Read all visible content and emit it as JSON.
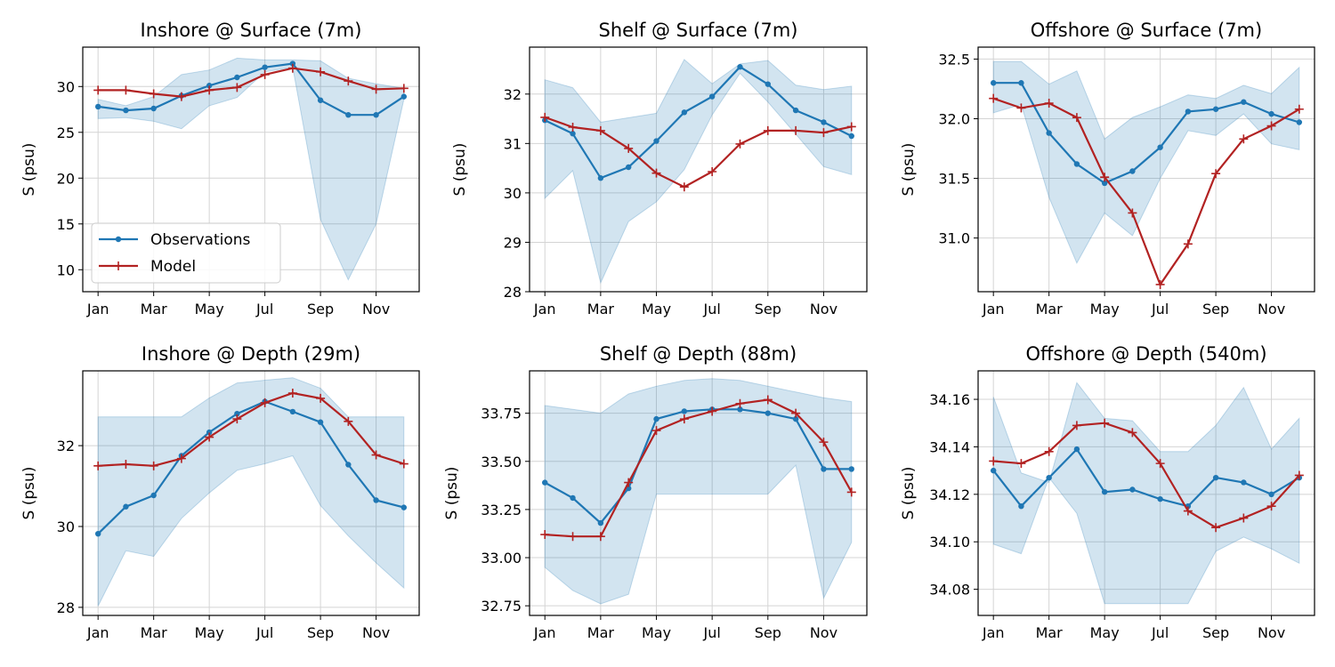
{
  "colors": {
    "obs": "#1f77b4",
    "model": "#b22222",
    "band": "#1f77b4",
    "grid": "#d4d4d4"
  },
  "legend": {
    "placement": "lower-left",
    "panel": 0,
    "obs_label": "Observations",
    "model_label": "Model"
  },
  "chart_data": [
    {
      "type": "line",
      "title": "Inshore @ Surface (7m)",
      "ylabel": "S (psu)",
      "months": [
        1,
        2,
        3,
        4,
        5,
        6,
        7,
        8,
        9,
        10,
        11,
        12
      ],
      "xticks": [
        {
          "m": 1,
          "label": "Jan"
        },
        {
          "m": 3,
          "label": "Mar"
        },
        {
          "m": 5,
          "label": "May"
        },
        {
          "m": 7,
          "label": "Jul"
        },
        {
          "m": 9,
          "label": "Sep"
        },
        {
          "m": 11,
          "label": "Nov"
        }
      ],
      "ylim": [
        7.6,
        34.3
      ],
      "yticks": [
        {
          "v": 10,
          "label": "10"
        },
        {
          "v": 15,
          "label": "15"
        },
        {
          "v": 20,
          "label": "20"
        },
        {
          "v": 25,
          "label": "25"
        },
        {
          "v": 30,
          "label": "30"
        }
      ],
      "series": [
        {
          "name": "Observations",
          "values": [
            27.8,
            27.4,
            27.6,
            29.0,
            30.1,
            31.0,
            32.1,
            32.5,
            28.5,
            26.9,
            26.9,
            28.9
          ]
        },
        {
          "name": "Model",
          "values": [
            29.6,
            29.6,
            29.2,
            28.9,
            29.6,
            29.9,
            31.3,
            32.0,
            31.6,
            30.6,
            29.7,
            29.8
          ]
        }
      ],
      "band_upper": [
        28.6,
        27.9,
        28.9,
        31.3,
        31.8,
        33.1,
        32.9,
        32.9,
        32.8,
        30.9,
        30.3,
        29.8
      ],
      "band_lower": [
        26.5,
        26.6,
        26.2,
        25.4,
        27.9,
        28.8,
        31.6,
        32.1,
        15.5,
        8.9,
        15.0,
        28.6
      ]
    },
    {
      "type": "line",
      "title": "Shelf @ Surface (7m)",
      "ylabel": "S (psu)",
      "months": [
        1,
        2,
        3,
        4,
        5,
        6,
        7,
        8,
        9,
        10,
        11,
        12
      ],
      "xticks": [
        {
          "m": 1,
          "label": "Jan"
        },
        {
          "m": 3,
          "label": "Mar"
        },
        {
          "m": 5,
          "label": "May"
        },
        {
          "m": 7,
          "label": "Jul"
        },
        {
          "m": 9,
          "label": "Sep"
        },
        {
          "m": 11,
          "label": "Nov"
        }
      ],
      "ylim": [
        28.0,
        32.95
      ],
      "yticks": [
        {
          "v": 28,
          "label": "28"
        },
        {
          "v": 29,
          "label": "29"
        },
        {
          "v": 30,
          "label": "30"
        },
        {
          "v": 31,
          "label": "31"
        },
        {
          "v": 32,
          "label": "32"
        }
      ],
      "series": [
        {
          "name": "Observations",
          "values": [
            31.47,
            31.2,
            30.3,
            30.52,
            31.05,
            31.63,
            31.95,
            32.55,
            32.2,
            31.67,
            31.43,
            31.15
          ]
        },
        {
          "name": "Model",
          "values": [
            31.53,
            31.33,
            31.26,
            30.9,
            30.4,
            30.12,
            30.43,
            30.99,
            31.26,
            31.26,
            31.22,
            31.34
          ]
        }
      ],
      "band_upper": [
        32.29,
        32.13,
        31.43,
        31.52,
        31.61,
        32.7,
        32.21,
        32.61,
        32.68,
        32.18,
        32.09,
        32.16
      ],
      "band_lower": [
        29.89,
        30.45,
        28.18,
        29.42,
        29.82,
        30.47,
        31.58,
        32.42,
        31.84,
        31.19,
        30.53,
        30.37
      ]
    },
    {
      "type": "line",
      "title": "Offshore @ Surface (7m)",
      "ylabel": "S (psu)",
      "months": [
        1,
        2,
        3,
        4,
        5,
        6,
        7,
        8,
        9,
        10,
        11,
        12
      ],
      "xticks": [
        {
          "m": 1,
          "label": "Jan"
        },
        {
          "m": 3,
          "label": "Mar"
        },
        {
          "m": 5,
          "label": "May"
        },
        {
          "m": 7,
          "label": "Jul"
        },
        {
          "m": 9,
          "label": "Sep"
        },
        {
          "m": 11,
          "label": "Nov"
        }
      ],
      "ylim": [
        30.55,
        32.6
      ],
      "yticks": [
        {
          "v": 31.0,
          "label": "31.0"
        },
        {
          "v": 31.5,
          "label": "31.5"
        },
        {
          "v": 32.0,
          "label": "32.0"
        },
        {
          "v": 32.5,
          "label": "32.5"
        }
      ],
      "series": [
        {
          "name": "Observations",
          "values": [
            32.3,
            32.3,
            31.88,
            31.62,
            31.46,
            31.56,
            31.76,
            32.06,
            32.08,
            32.14,
            32.04,
            31.97
          ]
        },
        {
          "name": "Model",
          "values": [
            32.17,
            32.09,
            32.13,
            32.01,
            31.51,
            31.21,
            30.61,
            30.95,
            31.54,
            31.83,
            31.94,
            32.08
          ]
        }
      ],
      "band_upper": [
        32.48,
        32.48,
        32.29,
        32.4,
        31.83,
        32.01,
        32.1,
        32.2,
        32.17,
        32.28,
        32.21,
        32.43
      ],
      "band_lower": [
        32.05,
        32.12,
        31.34,
        30.79,
        31.21,
        31.02,
        31.5,
        31.9,
        31.86,
        32.04,
        31.79,
        31.74
      ]
    },
    {
      "type": "line",
      "title": "Inshore @ Depth (29m)",
      "ylabel": "S (psu)",
      "months": [
        1,
        2,
        3,
        4,
        5,
        6,
        7,
        8,
        9,
        10,
        11,
        12
      ],
      "xticks": [
        {
          "m": 1,
          "label": "Jan"
        },
        {
          "m": 3,
          "label": "Mar"
        },
        {
          "m": 5,
          "label": "May"
        },
        {
          "m": 7,
          "label": "Jul"
        },
        {
          "m": 9,
          "label": "Sep"
        },
        {
          "m": 11,
          "label": "Nov"
        }
      ],
      "ylim": [
        27.8,
        33.85
      ],
      "yticks": [
        {
          "v": 28,
          "label": "28"
        },
        {
          "v": 30,
          "label": "30"
        },
        {
          "v": 32,
          "label": "32"
        }
      ],
      "series": [
        {
          "name": "Observations",
          "values": [
            29.82,
            30.49,
            30.77,
            31.75,
            32.33,
            32.79,
            33.09,
            32.84,
            32.58,
            31.53,
            30.65,
            30.47
          ]
        },
        {
          "name": "Model",
          "values": [
            31.5,
            31.54,
            31.5,
            31.68,
            32.21,
            32.66,
            33.06,
            33.3,
            33.17,
            32.6,
            31.77,
            31.55
          ]
        }
      ],
      "band_upper": [
        32.71,
        32.71,
        32.71,
        32.71,
        33.18,
        33.55,
        33.62,
        33.68,
        33.42,
        32.71,
        32.71,
        32.71
      ],
      "band_lower": [
        28.03,
        29.4,
        29.26,
        30.2,
        30.83,
        31.39,
        31.55,
        31.75,
        30.52,
        29.77,
        29.1,
        28.48
      ]
    },
    {
      "type": "line",
      "title": "Shelf @ Depth (88m)",
      "ylabel": "S (psu)",
      "months": [
        1,
        2,
        3,
        4,
        5,
        6,
        7,
        8,
        9,
        10,
        11,
        12
      ],
      "xticks": [
        {
          "m": 1,
          "label": "Jan"
        },
        {
          "m": 3,
          "label": "Mar"
        },
        {
          "m": 5,
          "label": "May"
        },
        {
          "m": 7,
          "label": "Jul"
        },
        {
          "m": 9,
          "label": "Sep"
        },
        {
          "m": 11,
          "label": "Nov"
        }
      ],
      "ylim": [
        32.7,
        33.97
      ],
      "yticks": [
        {
          "v": 32.75,
          "label": "32.75"
        },
        {
          "v": 33.0,
          "label": "33.00"
        },
        {
          "v": 33.25,
          "label": "33.25"
        },
        {
          "v": 33.5,
          "label": "33.50"
        },
        {
          "v": 33.75,
          "label": "33.75"
        }
      ],
      "series": [
        {
          "name": "Observations",
          "values": [
            33.39,
            33.31,
            33.18,
            33.36,
            33.72,
            33.76,
            33.77,
            33.77,
            33.75,
            33.72,
            33.46,
            33.46
          ]
        },
        {
          "name": "Model",
          "values": [
            33.12,
            33.11,
            33.11,
            33.39,
            33.66,
            33.72,
            33.76,
            33.8,
            33.82,
            33.75,
            33.6,
            33.34
          ]
        }
      ],
      "band_upper": [
        33.79,
        33.77,
        33.75,
        33.85,
        33.89,
        33.92,
        33.93,
        33.92,
        33.89,
        33.86,
        33.83,
        33.81
      ],
      "band_lower": [
        32.95,
        32.83,
        32.76,
        32.81,
        33.33,
        33.33,
        33.33,
        33.33,
        33.33,
        33.48,
        32.79,
        33.08
      ]
    },
    {
      "type": "line",
      "title": "Offshore @ Depth (540m)",
      "ylabel": "S (psu)",
      "months": [
        1,
        2,
        3,
        4,
        5,
        6,
        7,
        8,
        9,
        10,
        11,
        12
      ],
      "xticks": [
        {
          "m": 1,
          "label": "Jan"
        },
        {
          "m": 3,
          "label": "Mar"
        },
        {
          "m": 5,
          "label": "May"
        },
        {
          "m": 7,
          "label": "Jul"
        },
        {
          "m": 9,
          "label": "Sep"
        },
        {
          "m": 11,
          "label": "Nov"
        }
      ],
      "ylim": [
        34.069,
        34.172
      ],
      "yticks": [
        {
          "v": 34.08,
          "label": "34.08"
        },
        {
          "v": 34.1,
          "label": "34.10"
        },
        {
          "v": 34.12,
          "label": "34.12"
        },
        {
          "v": 34.14,
          "label": "34.14"
        },
        {
          "v": 34.16,
          "label": "34.16"
        }
      ],
      "series": [
        {
          "name": "Observations",
          "values": [
            34.13,
            34.115,
            34.127,
            34.139,
            34.121,
            34.122,
            34.118,
            34.115,
            34.127,
            34.125,
            34.12,
            34.127
          ]
        },
        {
          "name": "Model",
          "values": [
            34.134,
            34.133,
            34.138,
            34.149,
            34.15,
            34.146,
            34.133,
            34.113,
            34.106,
            34.11,
            34.115,
            34.128
          ]
        }
      ],
      "band_upper": [
        34.161,
        34.129,
        34.125,
        34.167,
        34.152,
        34.151,
        34.138,
        34.138,
        34.149,
        34.165,
        34.139,
        34.152
      ],
      "band_lower": [
        34.099,
        34.095,
        34.127,
        34.112,
        34.074,
        34.074,
        34.074,
        34.074,
        34.096,
        34.102,
        34.097,
        34.091
      ]
    }
  ]
}
